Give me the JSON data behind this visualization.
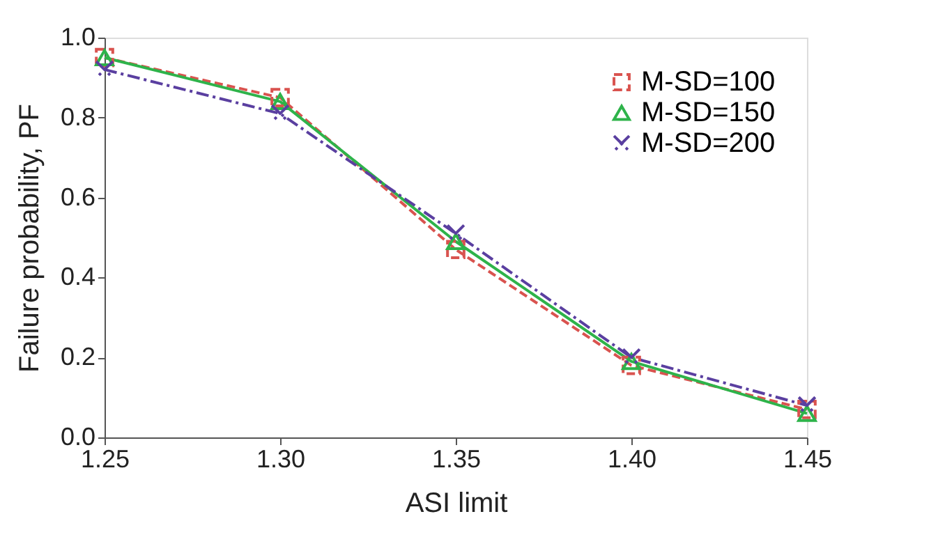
{
  "chart_data": {
    "type": "line",
    "xlabel": "ASI limit",
    "ylabel": "Failure probability, PF",
    "x": [
      1.25,
      1.3,
      1.35,
      1.4,
      1.45
    ],
    "series": [
      {
        "name": "M-SD=100",
        "color": "#d9534f",
        "values": [
          0.95,
          0.85,
          0.47,
          0.18,
          0.07
        ],
        "marker": "square",
        "line_style": "dashed"
      },
      {
        "name": "M-SD=150",
        "color": "#2eb34a",
        "values": [
          0.95,
          0.84,
          0.49,
          0.19,
          0.06
        ],
        "marker": "triangle",
        "line_style": "solid"
      },
      {
        "name": "M-SD=200",
        "color": "#5a3fa0",
        "values": [
          0.92,
          0.81,
          0.51,
          0.2,
          0.08
        ],
        "marker": "cross",
        "line_style": "dotted"
      }
    ],
    "xlim": [
      1.25,
      1.45
    ],
    "xticks": [
      {
        "value": 1.25,
        "label": "1.25"
      },
      {
        "value": 1.3,
        "label": "1.30"
      },
      {
        "value": 1.35,
        "label": "1.35"
      },
      {
        "value": 1.4,
        "label": "1.40"
      },
      {
        "value": 1.45,
        "label": "1.45"
      }
    ],
    "ylim": [
      0,
      1
    ],
    "yticks": [
      {
        "value": 0,
        "label": "0.0"
      },
      {
        "value": 0.2,
        "label": "0.2"
      },
      {
        "value": 0.4,
        "label": "0.4"
      },
      {
        "value": 0.6,
        "label": "0.6"
      },
      {
        "value": 0.8,
        "label": "0.8"
      },
      {
        "value": 1,
        "label": "1.0"
      }
    ],
    "grid": false,
    "legend": "top right"
  }
}
